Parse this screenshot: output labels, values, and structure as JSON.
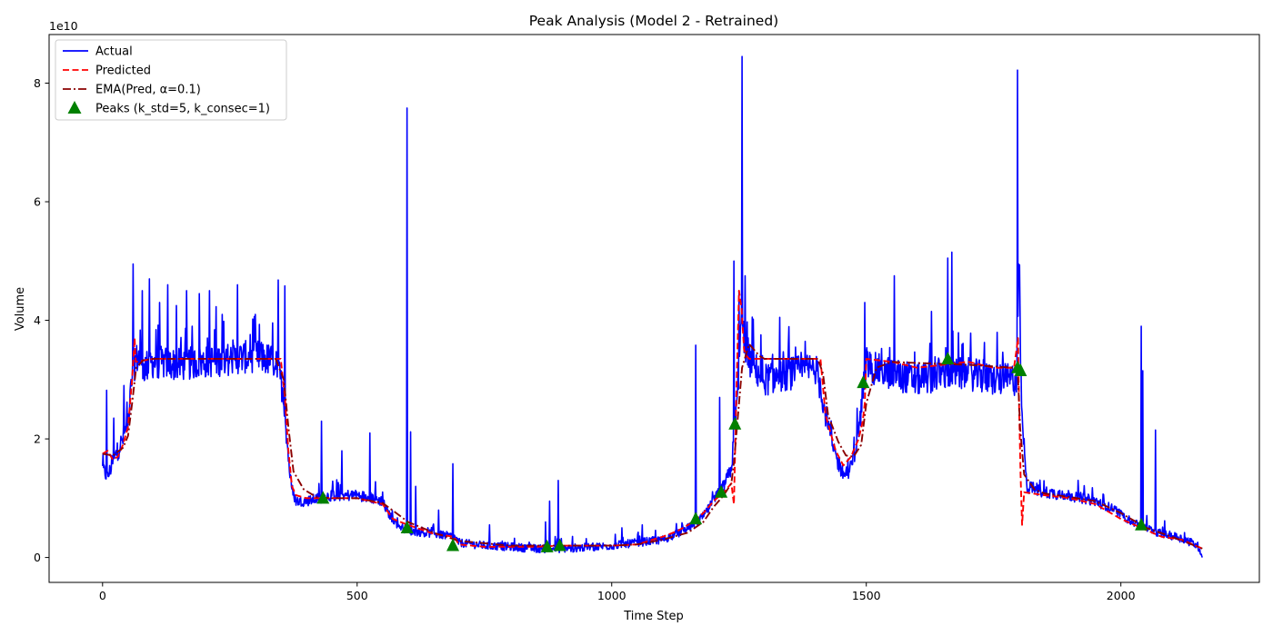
{
  "chart_data": {
    "type": "line",
    "title": "Peak Analysis (Model 2 - Retrained)",
    "xlabel": "Time Step",
    "ylabel": "Volume",
    "y_offset_text": "1e10",
    "y_scale_factor": 10000000000,
    "xlim": [
      -105,
      2272
    ],
    "ylim": [
      -0.42,
      8.82
    ],
    "x_ticks": [
      0,
      500,
      1000,
      1500,
      2000
    ],
    "x_tick_labels": [
      "0",
      "500",
      "1000",
      "1500",
      "2000"
    ],
    "y_ticks": [
      0,
      2,
      4,
      6,
      8
    ],
    "y_tick_labels": [
      "0",
      "2",
      "4",
      "6",
      "8"
    ],
    "grid": false,
    "legend_position": "top-left",
    "series": [
      {
        "name": "Actual",
        "style": "solid",
        "color": "#0000ff",
        "noise": 0.28,
        "x": [
          0,
          10,
          20,
          30,
          40,
          50,
          60,
          70,
          80,
          100,
          150,
          200,
          250,
          300,
          340,
          355,
          362,
          370,
          380,
          400,
          450,
          500,
          530,
          550,
          560,
          580,
          600,
          650,
          690,
          700,
          750,
          800,
          850,
          900,
          950,
          1000,
          1050,
          1100,
          1130,
          1160,
          1180,
          1200,
          1220,
          1235,
          1245,
          1255,
          1265,
          1280,
          1300,
          1350,
          1400,
          1412,
          1425,
          1440,
          1455,
          1470,
          1480,
          1490,
          1500,
          1510,
          1550,
          1600,
          1650,
          1700,
          1750,
          1780,
          1795,
          1800,
          1805,
          1815,
          1850,
          1900,
          1950,
          1990,
          2020,
          2050,
          2080,
          2110,
          2140,
          2150,
          2155,
          2160
        ],
        "y": [
          1.5,
          1.35,
          1.6,
          1.8,
          2.0,
          2.3,
          3.2,
          3.4,
          3.2,
          3.3,
          3.25,
          3.3,
          3.35,
          3.4,
          3.3,
          2.8,
          2.0,
          1.2,
          0.95,
          0.95,
          1.05,
          1.05,
          1.0,
          0.95,
          0.75,
          0.55,
          0.45,
          0.4,
          0.35,
          0.25,
          0.2,
          0.18,
          0.15,
          0.15,
          0.17,
          0.2,
          0.25,
          0.3,
          0.4,
          0.55,
          0.7,
          0.95,
          1.2,
          1.5,
          2.5,
          4.0,
          3.4,
          3.2,
          3.0,
          3.1,
          3.2,
          2.8,
          2.2,
          1.7,
          1.4,
          1.5,
          1.9,
          2.5,
          3.3,
          3.2,
          3.1,
          3.0,
          3.1,
          3.1,
          3.0,
          3.0,
          3.0,
          4.8,
          2.5,
          1.2,
          1.1,
          1.05,
          0.95,
          0.8,
          0.6,
          0.5,
          0.4,
          0.35,
          0.25,
          0.2,
          0.15,
          0.0
        ],
        "spikes": [
          [
            8,
            2.82
          ],
          [
            22,
            2.35
          ],
          [
            42,
            2.9
          ],
          [
            60,
            4.95
          ],
          [
            78,
            4.5
          ],
          [
            92,
            4.7
          ],
          [
            112,
            4.3
          ],
          [
            128,
            4.6
          ],
          [
            145,
            4.25
          ],
          [
            165,
            4.5
          ],
          [
            190,
            4.45
          ],
          [
            210,
            4.5
          ],
          [
            235,
            4.1
          ],
          [
            265,
            4.6
          ],
          [
            300,
            4.1
          ],
          [
            345,
            4.68
          ],
          [
            358,
            4.58
          ],
          [
            430,
            2.3
          ],
          [
            470,
            1.8
          ],
          [
            525,
            2.1
          ],
          [
            598,
            7.58
          ],
          [
            605,
            2.12
          ],
          [
            615,
            1.2
          ],
          [
            660,
            0.8
          ],
          [
            688,
            1.58
          ],
          [
            760,
            0.55
          ],
          [
            870,
            0.6
          ],
          [
            878,
            0.95
          ],
          [
            895,
            1.3
          ],
          [
            1020,
            0.5
          ],
          [
            1060,
            0.55
          ],
          [
            1165,
            3.58
          ],
          [
            1212,
            2.7
          ],
          [
            1240,
            5.0
          ],
          [
            1250,
            4.5
          ],
          [
            1256,
            8.45
          ],
          [
            1262,
            4.75
          ],
          [
            1330,
            4.05
          ],
          [
            1497,
            4.3
          ],
          [
            1555,
            4.75
          ],
          [
            1628,
            4.15
          ],
          [
            1660,
            5.05
          ],
          [
            1668,
            5.15
          ],
          [
            1797,
            8.22
          ],
          [
            2040,
            3.9
          ],
          [
            2043,
            3.15
          ],
          [
            2068,
            2.15
          ]
        ]
      },
      {
        "name": "Predicted",
        "style": "dashed",
        "color": "#ff0000",
        "x": [
          0,
          10,
          20,
          30,
          40,
          50,
          58,
          63,
          65,
          100,
          200,
          300,
          350,
          358,
          365,
          372,
          380,
          400,
          450,
          500,
          550,
          570,
          600,
          650,
          690,
          700,
          750,
          800,
          850,
          900,
          950,
          1000,
          1050,
          1080,
          1100,
          1130,
          1160,
          1180,
          1200,
          1220,
          1235,
          1240,
          1245,
          1250,
          1255,
          1260,
          1265,
          1270,
          1275,
          1300,
          1350,
          1410,
          1420,
          1440,
          1455,
          1470,
          1485,
          1493,
          1497,
          1500,
          1550,
          1600,
          1650,
          1700,
          1750,
          1790,
          1795,
          1798,
          1800,
          1803,
          1806,
          1810,
          1850,
          1900,
          1950,
          2000,
          2040,
          2080,
          2120,
          2160
        ],
        "y": [
          1.75,
          1.8,
          1.65,
          1.7,
          1.9,
          2.2,
          3.0,
          3.7,
          3.3,
          3.35,
          3.35,
          3.35,
          3.35,
          2.7,
          1.8,
          1.2,
          1.05,
          1.0,
          1.0,
          1.0,
          0.9,
          0.65,
          0.55,
          0.4,
          0.35,
          0.22,
          0.18,
          0.18,
          0.18,
          0.2,
          0.2,
          0.2,
          0.22,
          0.3,
          0.35,
          0.45,
          0.6,
          0.75,
          0.95,
          1.1,
          1.25,
          0.9,
          2.8,
          4.5,
          4.2,
          3.5,
          3.4,
          3.35,
          3.35,
          3.35,
          3.35,
          3.35,
          2.4,
          1.8,
          1.55,
          1.7,
          2.0,
          2.3,
          2.6,
          3.35,
          3.3,
          3.2,
          3.25,
          3.3,
          3.2,
          3.2,
          3.5,
          3.7,
          2.6,
          1.4,
          0.55,
          1.1,
          1.05,
          1.0,
          0.9,
          0.65,
          0.5,
          0.35,
          0.3,
          0.15
        ]
      },
      {
        "name": "EMA(Pred, α=0.1)",
        "style": "dashdot",
        "color": "#8b0000",
        "x": [
          0,
          20,
          40,
          50,
          58,
          66,
          80,
          100,
          200,
          340,
          356,
          365,
          375,
          395,
          420,
          450,
          500,
          550,
          600,
          650,
          700,
          800,
          900,
          1000,
          1050,
          1100,
          1150,
          1180,
          1200,
          1220,
          1235,
          1240,
          1246,
          1256,
          1270,
          1290,
          1300,
          1350,
          1405,
          1415,
          1425,
          1445,
          1460,
          1475,
          1490,
          1500,
          1520,
          1550,
          1600,
          1700,
          1790,
          1797,
          1802,
          1810,
          1830,
          1850,
          1900,
          1950,
          2000,
          2050,
          2100,
          2160
        ],
        "y": [
          1.75,
          1.72,
          1.85,
          2.05,
          2.6,
          3.2,
          3.33,
          3.35,
          3.35,
          3.35,
          3.0,
          2.2,
          1.45,
          1.15,
          1.02,
          1.0,
          1.0,
          0.92,
          0.6,
          0.42,
          0.28,
          0.2,
          0.2,
          0.2,
          0.22,
          0.3,
          0.42,
          0.6,
          0.85,
          1.05,
          1.25,
          1.6,
          2.2,
          3.2,
          3.6,
          3.4,
          3.35,
          3.35,
          3.35,
          3.1,
          2.4,
          1.95,
          1.72,
          1.7,
          1.9,
          2.6,
          3.2,
          3.3,
          3.28,
          3.25,
          3.2,
          3.25,
          2.2,
          1.4,
          1.15,
          1.08,
          1.02,
          0.95,
          0.75,
          0.5,
          0.35,
          0.15
        ]
      }
    ],
    "peaks": {
      "name": "Peaks (k_std=5, k_consec=1)",
      "color": "#008000",
      "marker": "triangle-up",
      "x": [
        433,
        598,
        688,
        873,
        898,
        1165,
        1215,
        1242,
        1494,
        1660,
        1797,
        1803,
        2040
      ],
      "y": [
        1.0,
        0.5,
        0.2,
        0.18,
        0.2,
        0.65,
        1.1,
        2.25,
        2.95,
        3.35,
        3.2,
        3.15,
        0.55
      ]
    }
  }
}
